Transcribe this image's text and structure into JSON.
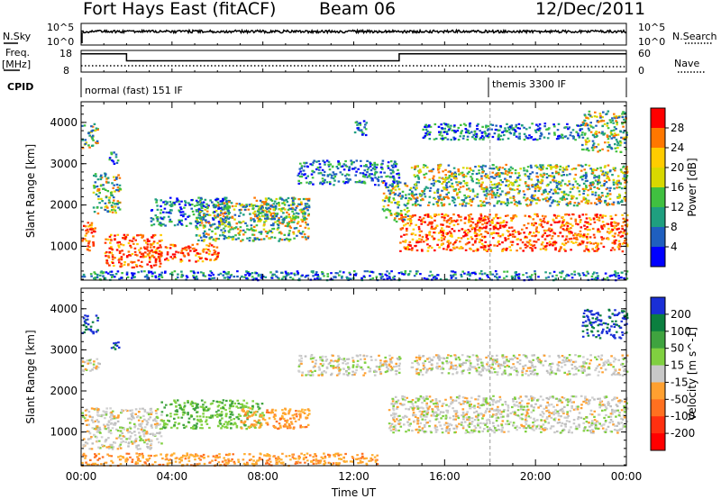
{
  "header": {
    "title": "Fort Hays East (fitACF)",
    "beam": "Beam 06",
    "date": "12/Dec/2011"
  },
  "top_panels": {
    "nsky_label": "N.Sky",
    "nsky_ticks": [
      "10^5",
      "10^0"
    ],
    "nsearch_label": "N.Search",
    "nsearch_ticks": [
      "10^5",
      "10^0"
    ],
    "freq_label": "Freq.",
    "freq_unit": "[MHz]",
    "freq_ticks": [
      "18",
      "8"
    ],
    "nave_label": "Nave",
    "nave_ticks": [
      "60",
      "0"
    ],
    "cpid_label": "CPID",
    "cpid_segments": [
      {
        "label": "normal (fast) 151 IF",
        "start_hour": 0
      },
      {
        "label": "themis 3300 IF",
        "start_hour": 18
      }
    ],
    "freq_series": [
      {
        "hour": 0,
        "value": 16.4
      },
      {
        "hour": 2.0,
        "value": 16.4
      },
      {
        "hour": 2.0,
        "value": 13.2
      },
      {
        "hour": 14.0,
        "value": 13.2
      },
      {
        "hour": 14.0,
        "value": 16.4
      },
      {
        "hour": 24,
        "value": 16.4
      }
    ]
  },
  "chart_data": [
    {
      "type": "heatmap",
      "name": "power",
      "xlabel": "",
      "ylabel": "Slant Range [km]",
      "xlim": [
        0,
        24
      ],
      "ylim": [
        180,
        4500
      ],
      "yticks": [
        1000,
        2000,
        3000,
        4000
      ],
      "colorbar": {
        "label": "Power [dB]",
        "ticks": [
          "28",
          "24",
          "20",
          "16",
          "12",
          "8",
          "4"
        ],
        "colors": [
          "#ff0000",
          "#ff7700",
          "#ffcc00",
          "#d8d800",
          "#40c040",
          "#1f9f7f",
          "#1f5fbf",
          "#0000ff"
        ]
      },
      "echo_regions": [
        {
          "t0": 0.0,
          "t1": 0.6,
          "r0": 900,
          "r1": 1600,
          "level": "high"
        },
        {
          "t0": 0.0,
          "t1": 0.7,
          "r0": 3400,
          "r1": 4000,
          "level": "mid"
        },
        {
          "t0": 0.5,
          "t1": 1.7,
          "r0": 1800,
          "r1": 2800,
          "level": "mid"
        },
        {
          "t0": 1.2,
          "t1": 1.7,
          "r0": 3000,
          "r1": 3300,
          "level": "low"
        },
        {
          "t0": 1.0,
          "t1": 3.5,
          "r0": 500,
          "r1": 1300,
          "level": "high"
        },
        {
          "t0": 3.0,
          "t1": 6.0,
          "r0": 650,
          "r1": 1100,
          "level": "high"
        },
        {
          "t0": 3.0,
          "t1": 6.5,
          "r0": 1500,
          "r1": 2200,
          "level": "low"
        },
        {
          "t0": 5.0,
          "t1": 10.0,
          "r0": 1150,
          "r1": 2100,
          "level": "mid"
        },
        {
          "t0": 7.5,
          "t1": 10.0,
          "r0": 1600,
          "r1": 2200,
          "level": "mid"
        },
        {
          "t0": 9.5,
          "t1": 14.0,
          "r0": 2500,
          "r1": 3100,
          "level": "low"
        },
        {
          "t0": 12.0,
          "t1": 12.6,
          "r0": 3700,
          "r1": 4100,
          "level": "low"
        },
        {
          "t0": 13.2,
          "t1": 14.5,
          "r0": 1600,
          "r1": 2600,
          "level": "mid"
        },
        {
          "t0": 14.0,
          "t1": 24.0,
          "r0": 900,
          "r1": 1800,
          "level": "high"
        },
        {
          "t0": 14.5,
          "t1": 24.0,
          "r0": 2000,
          "r1": 3000,
          "level": "mid"
        },
        {
          "t0": 15.0,
          "t1": 22.0,
          "r0": 3600,
          "r1": 4000,
          "level": "low"
        },
        {
          "t0": 22.0,
          "t1": 24.0,
          "r0": 3300,
          "r1": 4300,
          "level": "mid"
        },
        {
          "t0": 0.0,
          "t1": 24.0,
          "r0": 200,
          "r1": 420,
          "level": "low"
        }
      ]
    },
    {
      "type": "heatmap",
      "name": "velocity",
      "xlabel": "Time UT",
      "ylabel": "Slant Range [km]",
      "xlim": [
        0,
        24
      ],
      "ylim": [
        180,
        4500
      ],
      "xticks": [
        "00:00",
        "04:00",
        "08:00",
        "12:00",
        "16:00",
        "20:00",
        "00:00"
      ],
      "yticks": [
        1000,
        2000,
        3000,
        4000
      ],
      "colorbar": {
        "label": "Velocity [m s^-1]",
        "ticks": [
          "200",
          "100",
          "50",
          "15",
          "-15",
          "-50",
          "-100",
          "-200"
        ],
        "colors": [
          "#1a2fd6",
          "#0b7f3f",
          "#3fa33f",
          "#80d040",
          "#c8c8c8",
          "#ffa030",
          "#ff7020",
          "#ff3010",
          "#ff0000"
        ]
      },
      "echo_regions": [
        {
          "t0": 0.0,
          "t1": 0.7,
          "r0": 3400,
          "r1": 3900,
          "level": "pos_high"
        },
        {
          "t0": 0.0,
          "t1": 3.5,
          "r0": 600,
          "r1": 1600,
          "level": "zero"
        },
        {
          "t0": 0.0,
          "t1": 0.8,
          "r0": 2500,
          "r1": 2800,
          "level": "zero"
        },
        {
          "t0": 1.3,
          "t1": 1.7,
          "r0": 3000,
          "r1": 3300,
          "level": "pos_high"
        },
        {
          "t0": 3.5,
          "t1": 8.0,
          "r0": 1100,
          "r1": 1800,
          "level": "pos_mid"
        },
        {
          "t0": 7.0,
          "t1": 10.0,
          "r0": 1100,
          "r1": 1600,
          "level": "neg_low"
        },
        {
          "t0": 9.5,
          "t1": 14.0,
          "r0": 2400,
          "r1": 2900,
          "level": "zero"
        },
        {
          "t0": 13.5,
          "t1": 24.0,
          "r0": 1000,
          "r1": 1900,
          "level": "zero"
        },
        {
          "t0": 14.5,
          "t1": 24.0,
          "r0": 2400,
          "r1": 2900,
          "level": "zero"
        },
        {
          "t0": 22.0,
          "t1": 24.0,
          "r0": 3300,
          "r1": 4000,
          "level": "pos_high"
        },
        {
          "t0": 0.0,
          "t1": 13.0,
          "r0": 200,
          "r1": 500,
          "level": "neg_low"
        }
      ]
    }
  ]
}
